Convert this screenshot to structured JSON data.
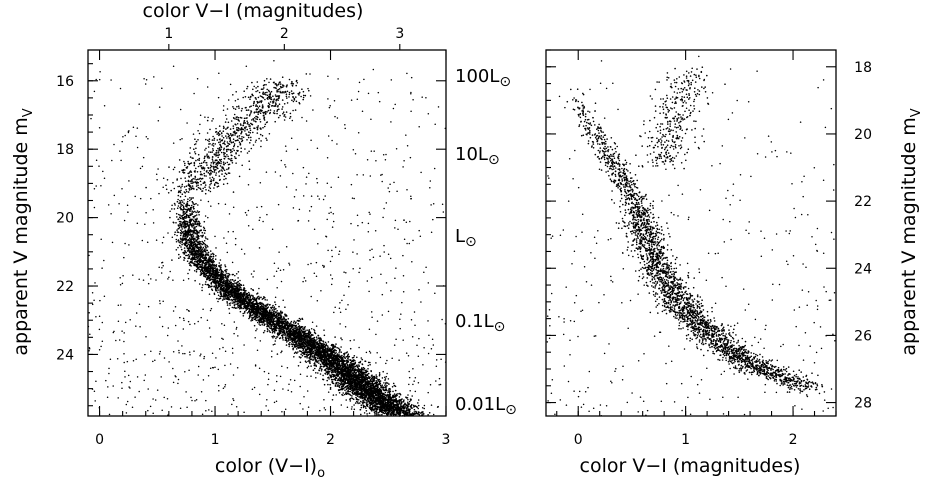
{
  "chart_data": [
    {
      "type": "scatter",
      "panel": "left",
      "title": "",
      "xlabel": "color (V−I)",
      "xlabel_subscript": "o",
      "x2label": "color V−I (magnitudes)",
      "ylabel": "apparent V magnitude m",
      "ylabel_subscript": "V",
      "xlim": [
        -0.1,
        3.0
      ],
      "ylim": [
        25.8,
        15.1
      ],
      "y_inverted": true,
      "x_ticks": [
        0,
        1,
        2,
        3
      ],
      "x_tick_labels": [
        "0",
        "1",
        "2",
        "3"
      ],
      "x2_ticks": [
        1,
        2,
        3
      ],
      "x2_tick_labels": [
        "1",
        "2",
        "3"
      ],
      "x2_offset": 0.4,
      "y_ticks": [
        16,
        18,
        20,
        22,
        24
      ],
      "y_tick_labels": [
        "16",
        "18",
        "20",
        "22",
        "24"
      ],
      "grid": false,
      "legend": "none",
      "marker_color": "#000000",
      "point_count_estimate": 9000,
      "description_features": {
        "main_sequence_turnoff": {
          "x": 0.78,
          "y": 20.0
        },
        "main_sequence_track": [
          [
            0.75,
            19.3
          ],
          [
            0.76,
            20.0
          ],
          [
            0.8,
            20.8
          ],
          [
            0.95,
            21.5
          ],
          [
            1.2,
            22.3
          ],
          [
            1.6,
            23.2
          ],
          [
            2.0,
            24.1
          ],
          [
            2.3,
            25.0
          ],
          [
            2.6,
            25.8
          ]
        ],
        "giant_branch_track": [
          [
            0.8,
            19.2
          ],
          [
            0.95,
            18.5
          ],
          [
            1.1,
            17.8
          ],
          [
            1.3,
            17.1
          ],
          [
            1.5,
            16.6
          ],
          [
            1.6,
            16.1
          ]
        ]
      }
    },
    {
      "type": "scatter",
      "panel": "right",
      "title": "",
      "xlabel": "color V−I (magnitudes)",
      "ylabel": "apparent V magnitude m",
      "ylabel_subscript": "V",
      "xlim": [
        -0.3,
        2.4
      ],
      "ylim": [
        28.4,
        17.5
      ],
      "y_inverted": true,
      "x_ticks": [
        0,
        1,
        2
      ],
      "x_tick_labels": [
        "0",
        "1",
        "2"
      ],
      "y_ticks": [
        18,
        20,
        22,
        24,
        26,
        28
      ],
      "y_tick_labels": [
        "18",
        "20",
        "22",
        "24",
        "26",
        "28"
      ],
      "grid": false,
      "legend": "none",
      "marker_color": "#000000",
      "point_count_estimate": 3500,
      "description_features": {
        "main_sequence_track": [
          [
            -0.05,
            18.6
          ],
          [
            0.1,
            19.7
          ],
          [
            0.3,
            20.7
          ],
          [
            0.5,
            21.8
          ],
          [
            0.62,
            22.9
          ],
          [
            0.75,
            24.0
          ],
          [
            0.95,
            25.1
          ],
          [
            1.3,
            26.2
          ],
          [
            1.7,
            27.0
          ],
          [
            2.1,
            27.5
          ]
        ],
        "giant_branch_track": [
          [
            0.75,
            21.0
          ],
          [
            0.85,
            20.0
          ],
          [
            0.95,
            19.0
          ],
          [
            1.05,
            18.2
          ]
        ]
      }
    }
  ],
  "luminosity_scale": {
    "labels": [
      "100L",
      "10L",
      "L",
      "0.1L",
      "0.01L"
    ],
    "solar_symbol": "⊙"
  }
}
